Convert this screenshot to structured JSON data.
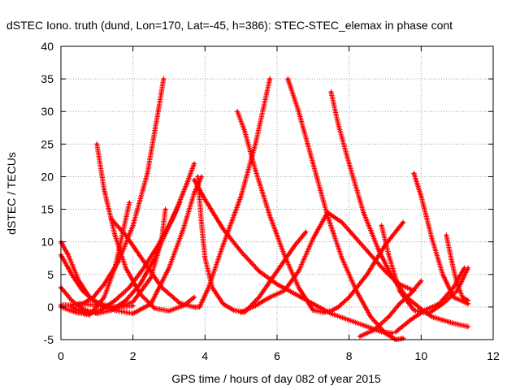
{
  "chart_data": {
    "type": "scatter",
    "title": "dSTEC Iono. truth (dund, Lon=170, Lat=-45, h=386): STEC-STEC_elemax in phase cont",
    "xlabel": "GPS time / hours of day 082 of year 2015",
    "ylabel": "dSTEC  / TECUs",
    "xlim": [
      0,
      12
    ],
    "ylim": [
      -5,
      40
    ],
    "x_ticks": [
      "0",
      "2",
      "4",
      "6",
      "8",
      "10",
      "12"
    ],
    "y_ticks": [
      "-5",
      "0",
      "5",
      "10",
      "15",
      "20",
      "25",
      "30",
      "35",
      "40"
    ],
    "grid": true,
    "marker": "+",
    "colors": {
      "series": "#ff0000",
      "grid": "#a0a0a0",
      "axis": "#000000"
    },
    "series": [
      {
        "x": [
          0.0,
          0.3,
          0.6,
          0.9,
          1.2,
          1.6,
          2.0,
          2.4,
          2.7,
          2.85
        ],
        "y": [
          0.3,
          0.3,
          0.5,
          1.5,
          3.5,
          7.0,
          12.5,
          20.5,
          30.0,
          35.0
        ]
      },
      {
        "x": [
          0.0,
          0.2,
          0.5,
          0.8,
          1.1,
          1.5,
          2.0,
          2.5,
          2.8,
          2.9
        ],
        "y": [
          10.0,
          8.0,
          4.0,
          1.5,
          0.3,
          -0.3,
          0.8,
          4.5,
          10.5,
          15.0
        ]
      },
      {
        "x": [
          0.0,
          0.3,
          0.6,
          0.9,
          1.2,
          1.6,
          2.0
        ],
        "y": [
          8.0,
          5.0,
          2.5,
          1.0,
          0.3,
          0.0,
          0.2
        ]
      },
      {
        "x": [
          0.0,
          0.3,
          0.6,
          1.0,
          1.4,
          1.8,
          2.2,
          2.6,
          3.0,
          3.3
        ],
        "y": [
          3.0,
          1.0,
          -0.3,
          -1.0,
          -0.5,
          1.0,
          3.5,
          7.5,
          12.5,
          16.0
        ]
      },
      {
        "x": [
          0.0,
          0.4,
          0.8,
          1.2,
          1.5,
          1.9
        ],
        "y": [
          0.0,
          -0.8,
          -1.2,
          1.5,
          6.0,
          16.0
        ]
      },
      {
        "x": [
          0.3,
          0.7,
          1.1,
          1.5,
          1.9,
          2.3,
          2.7,
          3.1,
          3.5,
          3.7
        ],
        "y": [
          0.0,
          -1.0,
          -0.5,
          1.0,
          3.0,
          6.0,
          9.5,
          13.5,
          19.0,
          22.0
        ]
      },
      {
        "x": [
          1.0,
          1.2,
          1.5,
          1.8,
          2.2,
          2.6,
          3.0,
          3.4,
          3.7
        ],
        "y": [
          25.0,
          18.0,
          11.0,
          6.0,
          2.0,
          -0.2,
          -0.6,
          0.2,
          1.5
        ]
      },
      {
        "x": [
          0.5,
          1.0,
          1.5,
          2.0,
          2.5,
          3.0,
          3.4,
          3.7,
          3.9
        ],
        "y": [
          0.5,
          0.3,
          -0.5,
          -1.0,
          0.5,
          6.0,
          12.0,
          17.5,
          20.0
        ]
      },
      {
        "x": [
          1.4,
          1.8,
          2.3,
          2.8,
          3.3,
          3.7,
          3.85,
          4.1,
          4.5,
          5.0,
          5.4,
          5.8
        ],
        "y": [
          13.5,
          11.0,
          7.0,
          3.0,
          0.6,
          0.0,
          0.0,
          3.0,
          9.5,
          17.0,
          25.0,
          35.0
        ]
      },
      {
        "x": [
          3.7,
          4.0,
          4.5,
          5.0,
          5.5,
          6.0,
          6.5,
          7.0,
          7.5,
          8.0,
          8.5,
          8.9,
          9.2
        ],
        "y": [
          19.5,
          16.5,
          12.0,
          8.5,
          5.5,
          3.5,
          2.0,
          0.5,
          -1.0,
          -2.0,
          -3.0,
          -3.8,
          -4.0
        ]
      },
      {
        "x": [
          3.8,
          3.9,
          4.0,
          4.2,
          4.5,
          4.8,
          5.1,
          5.5,
          6.0,
          6.5,
          6.8
        ],
        "y": [
          20.0,
          13.0,
          7.5,
          3.0,
          0.5,
          -0.5,
          -0.8,
          1.5,
          5.5,
          9.5,
          11.5
        ]
      },
      {
        "x": [
          4.9,
          5.1,
          5.4,
          5.8,
          6.2,
          6.6,
          7.0,
          7.3,
          7.5,
          7.7,
          8.0,
          8.5,
          9.0,
          9.5
        ],
        "y": [
          30.0,
          27.0,
          21.0,
          14.0,
          8.0,
          3.0,
          -0.5,
          -0.8,
          -0.6,
          0.0,
          1.5,
          5.0,
          9.5,
          13.0
        ]
      },
      {
        "x": [
          6.3,
          6.6,
          7.0,
          7.4,
          7.8,
          8.2,
          8.6,
          9.0,
          9.3,
          9.5
        ],
        "y": [
          35.0,
          30.0,
          22.0,
          14.0,
          7.5,
          2.5,
          -1.5,
          -4.0,
          -5.0,
          -4.8
        ]
      },
      {
        "x": [
          5.0,
          5.4,
          5.8,
          6.2,
          6.6,
          7.0,
          7.4,
          7.8,
          8.2,
          8.6,
          9.0,
          9.4,
          9.8
        ],
        "y": [
          -0.8,
          0.2,
          1.5,
          2.5,
          5.5,
          10.5,
          14.5,
          13.0,
          10.5,
          8.0,
          5.5,
          3.5,
          2.5
        ]
      },
      {
        "x": [
          7.5,
          7.7,
          8.0,
          8.4,
          8.8,
          9.2,
          9.6,
          10.0,
          10.3,
          10.6,
          10.9,
          11.3
        ],
        "y": [
          33.0,
          28.0,
          22.0,
          14.5,
          9.0,
          4.5,
          1.5,
          -0.3,
          -1.5,
          -2.0,
          -2.5,
          -3.0
        ]
      },
      {
        "x": [
          8.9,
          9.1,
          9.4,
          9.8,
          10.2,
          10.6,
          11.0,
          11.3
        ],
        "y": [
          12.5,
          8.0,
          2.5,
          -0.5,
          -1.0,
          0.5,
          2.5,
          6.0
        ]
      },
      {
        "x": [
          9.8,
          10.0,
          10.3,
          10.6,
          10.9,
          11.3
        ],
        "y": [
          20.5,
          17.0,
          10.5,
          5.0,
          1.5,
          0.5
        ]
      },
      {
        "x": [
          8.3,
          8.7,
          9.1,
          9.4,
          9.7,
          10.0
        ],
        "y": [
          -4.5,
          -3.5,
          -1.5,
          0.5,
          2.0,
          4.0
        ]
      },
      {
        "x": [
          9.3,
          9.7,
          10.1,
          10.5,
          10.9,
          11.2
        ],
        "y": [
          -3.8,
          -2.0,
          -0.5,
          0.5,
          3.0,
          6.0
        ]
      },
      {
        "x": [
          10.7,
          10.85,
          11.0,
          11.15,
          11.3
        ],
        "y": [
          11.0,
          7.0,
          3.5,
          1.5,
          1.0
        ]
      }
    ]
  }
}
